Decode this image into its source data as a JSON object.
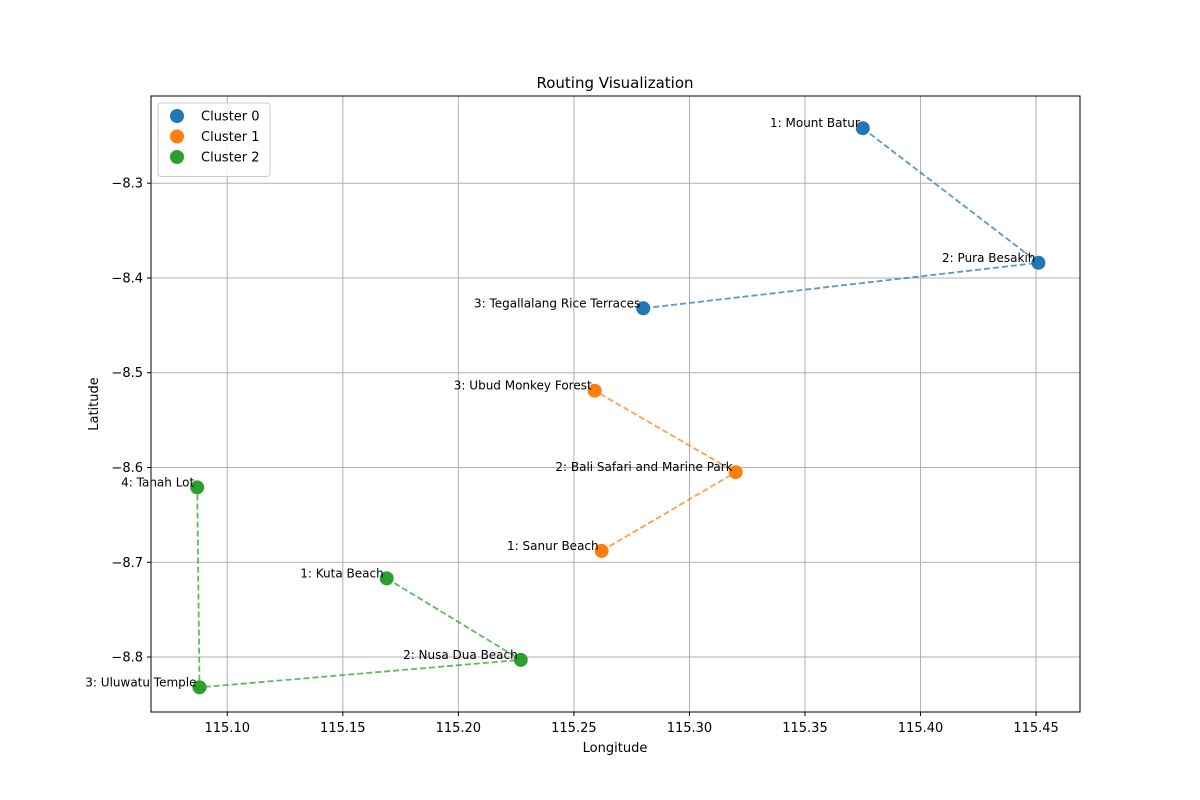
{
  "chart_data": {
    "type": "scatter",
    "title": "Routing Visualization",
    "xlabel": "Longitude",
    "ylabel": "Latitude",
    "xlim": [
      115.067,
      115.469
    ],
    "ylim": [
      -8.858,
      -8.208
    ],
    "xticks": [
      115.1,
      115.15,
      115.2,
      115.25,
      115.3,
      115.35,
      115.4,
      115.45
    ],
    "xtick_labels": [
      "115.10",
      "115.15",
      "115.20",
      "115.25",
      "115.30",
      "115.35",
      "115.40",
      "115.45"
    ],
    "yticks": [
      -8.3,
      -8.4,
      -8.5,
      -8.6,
      -8.7,
      -8.8
    ],
    "ytick_labels": [
      "−8.3",
      "−8.4",
      "−8.5",
      "−8.6",
      "−8.7",
      "−8.8"
    ],
    "grid": true,
    "legend_position": "top-left",
    "series": [
      {
        "name": "Cluster 0",
        "color": "#1f77b4",
        "route_style": "dashed",
        "points": [
          {
            "order": 1,
            "label": "1: Mount Batur",
            "x": 115.375,
            "y": -8.242
          },
          {
            "order": 2,
            "label": "2: Pura Besakih",
            "x": 115.451,
            "y": -8.384
          },
          {
            "order": 3,
            "label": "3: Tegallalang Rice Terraces",
            "x": 115.28,
            "y": -8.432
          }
        ]
      },
      {
        "name": "Cluster 1",
        "color": "#ff7f0e",
        "route_style": "dashed",
        "points": [
          {
            "order": 1,
            "label": "1: Sanur Beach",
            "x": 115.262,
            "y": -8.688
          },
          {
            "order": 2,
            "label": "2: Bali Safari and Marine Park",
            "x": 115.32,
            "y": -8.605
          },
          {
            "order": 3,
            "label": "3: Ubud Monkey Forest",
            "x": 115.259,
            "y": -8.519
          }
        ]
      },
      {
        "name": "Cluster 2",
        "color": "#2ca02c",
        "route_style": "dashed",
        "points": [
          {
            "order": 1,
            "label": "1: Kuta Beach",
            "x": 115.169,
            "y": -8.717
          },
          {
            "order": 2,
            "label": "2: Nusa Dua Beach",
            "x": 115.227,
            "y": -8.803
          },
          {
            "order": 3,
            "label": "3: Uluwatu Temple",
            "x": 115.088,
            "y": -8.832
          },
          {
            "order": 4,
            "label": "4: Tanah Lot",
            "x": 115.087,
            "y": -8.621
          }
        ]
      }
    ]
  }
}
